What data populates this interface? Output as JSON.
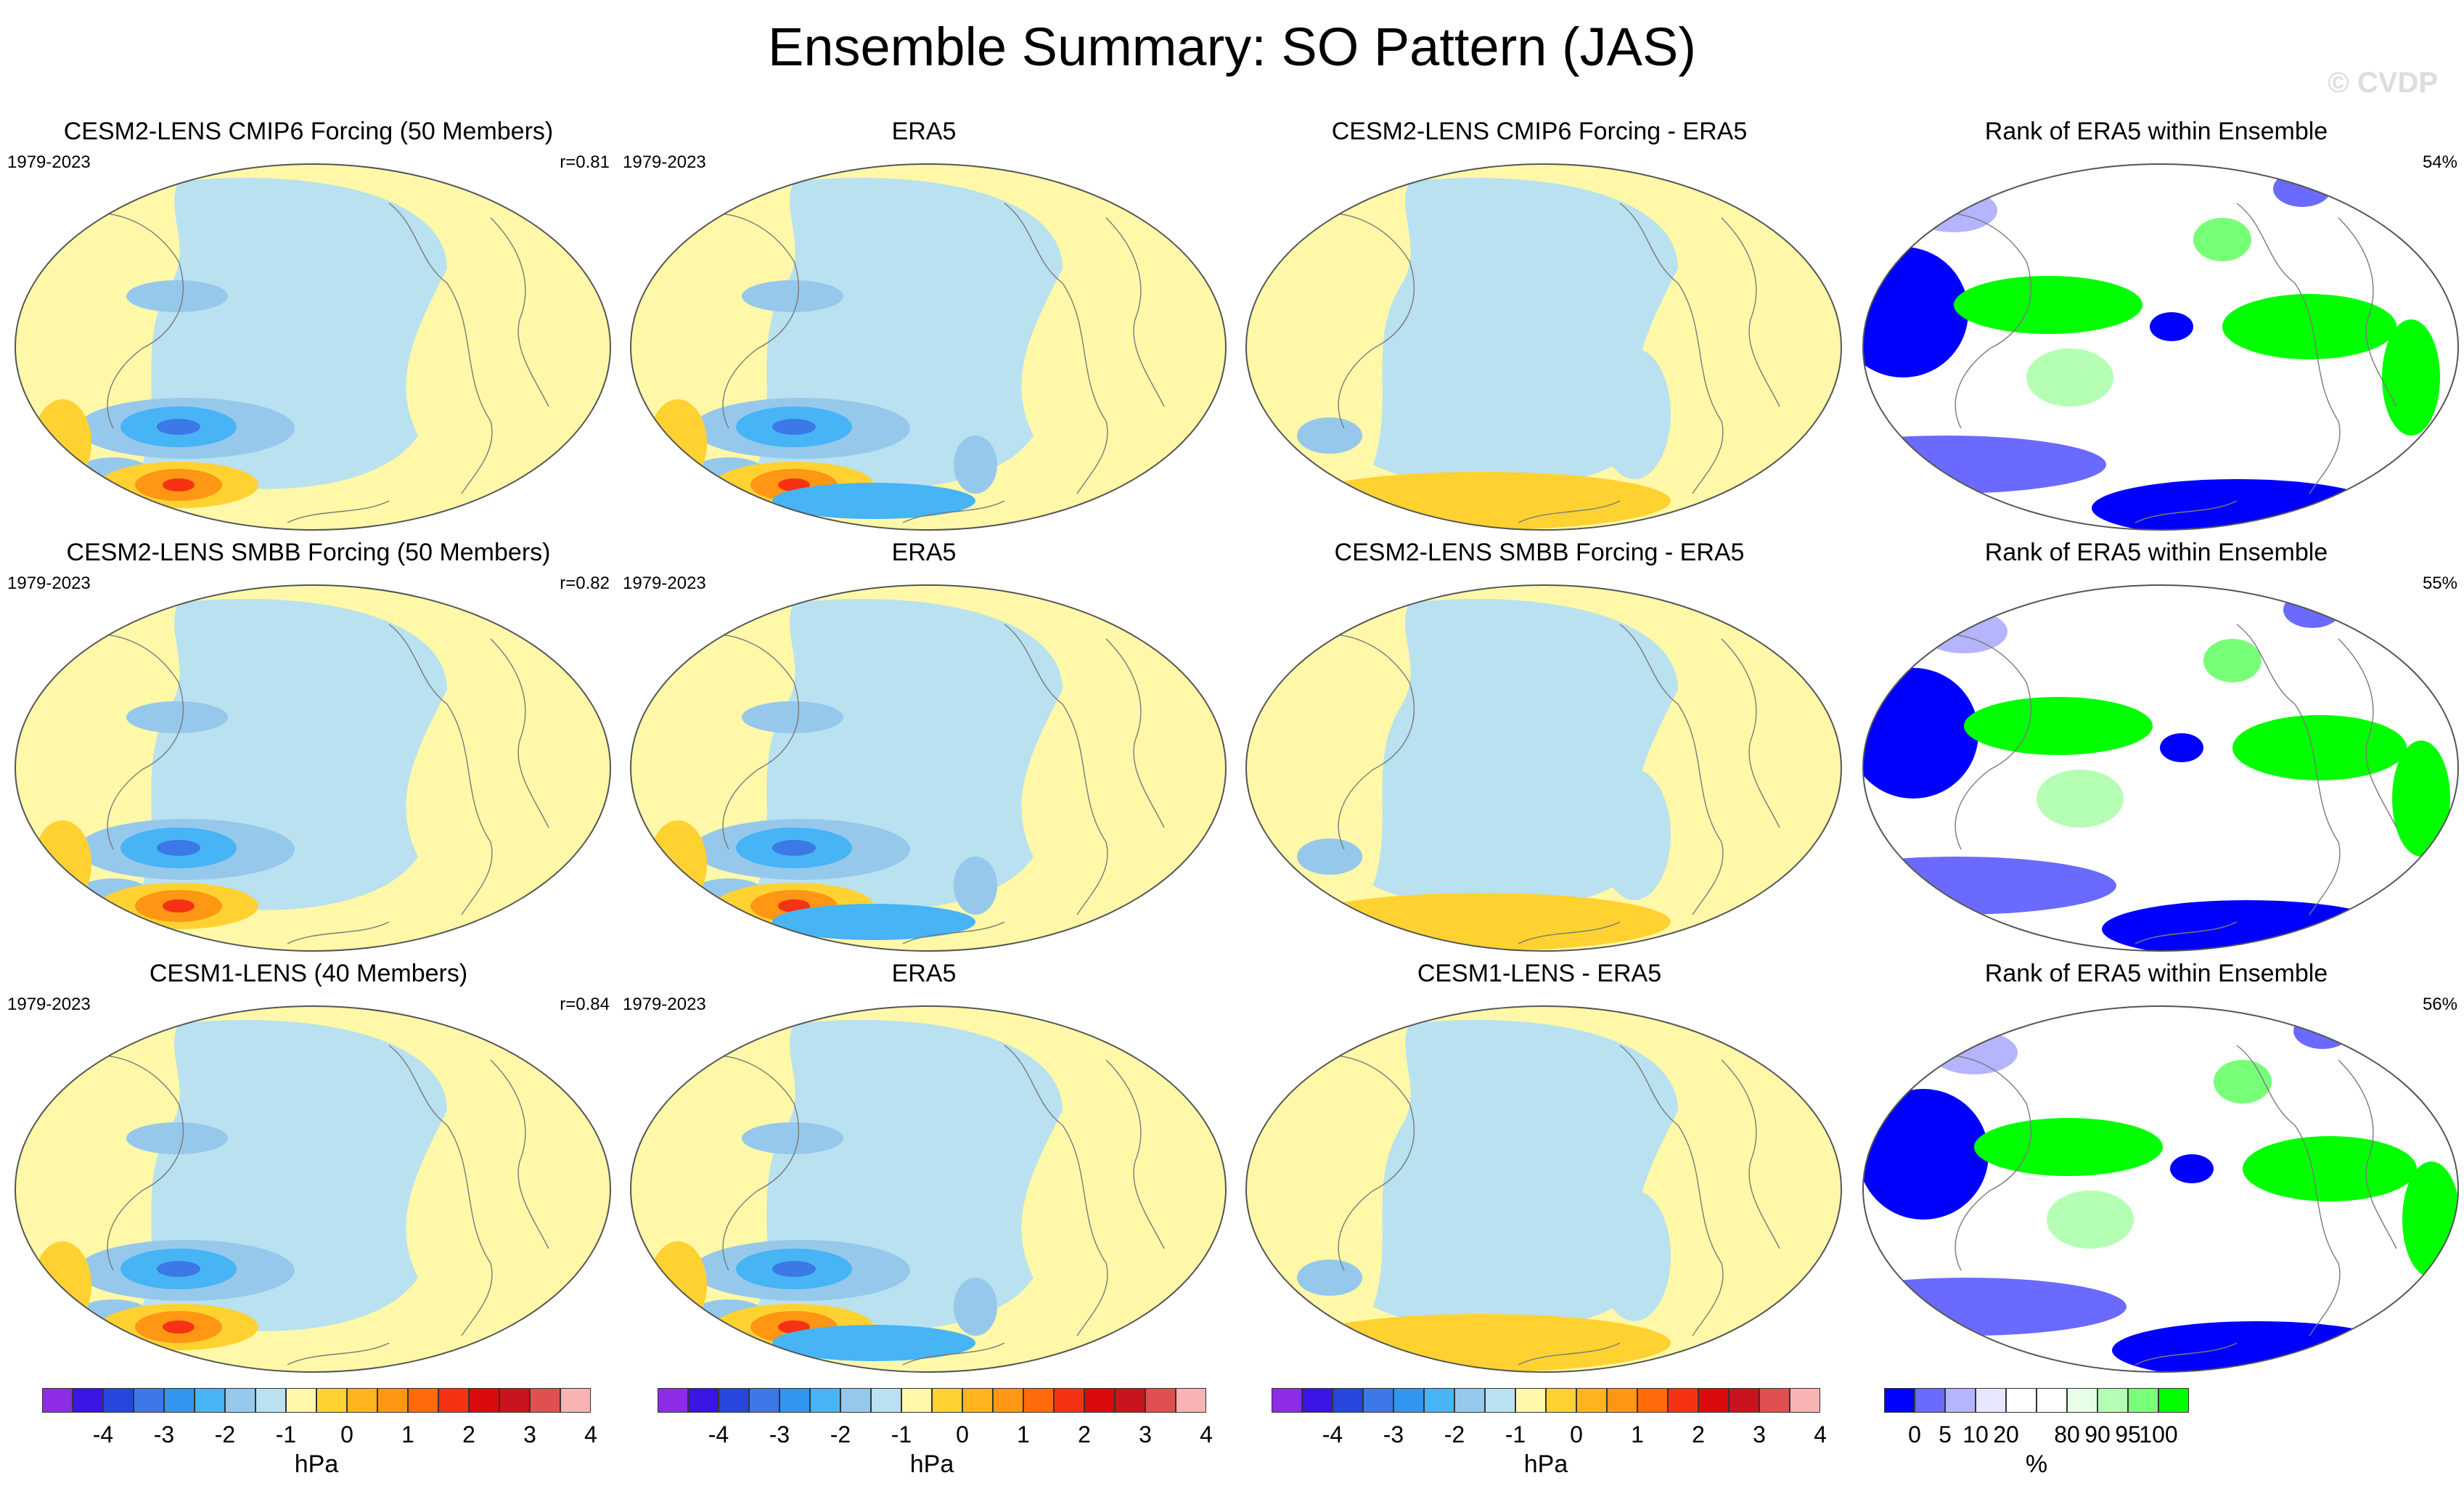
{
  "title": "Ensemble Summary: SO Pattern (JAS)",
  "watermark": "© CVDP",
  "rows": [
    {
      "panels": [
        {
          "title": "CESM2-LENS CMIP6 Forcing (50 Members)",
          "years": "1979-2023",
          "stat": "r=0.81",
          "kind": "model"
        },
        {
          "title": "ERA5",
          "years": "1979-2023",
          "stat": "",
          "kind": "obs"
        },
        {
          "title": "CESM2-LENS CMIP6 Forcing - ERA5",
          "years": "",
          "stat": "",
          "kind": "diff"
        },
        {
          "title": "Rank of ERA5 within Ensemble",
          "years": "",
          "stat": "54%",
          "kind": "rank"
        }
      ]
    },
    {
      "panels": [
        {
          "title": "CESM2-LENS SMBB Forcing (50 Members)",
          "years": "1979-2023",
          "stat": "r=0.82",
          "kind": "model"
        },
        {
          "title": "ERA5",
          "years": "1979-2023",
          "stat": "",
          "kind": "obs"
        },
        {
          "title": "CESM2-LENS SMBB Forcing - ERA5",
          "years": "",
          "stat": "",
          "kind": "diff"
        },
        {
          "title": "Rank of ERA5 within Ensemble",
          "years": "",
          "stat": "55%",
          "kind": "rank"
        }
      ]
    },
    {
      "panels": [
        {
          "title": "CESM1-LENS (40 Members)",
          "years": "1979-2023",
          "stat": "r=0.84",
          "kind": "model"
        },
        {
          "title": "ERA5",
          "years": "1979-2023",
          "stat": "",
          "kind": "obs"
        },
        {
          "title": "CESM1-LENS - ERA5",
          "years": "",
          "stat": "",
          "kind": "diff"
        },
        {
          "title": "Rank of ERA5 within Ensemble",
          "years": "",
          "stat": "56%",
          "kind": "rank"
        }
      ]
    }
  ],
  "colorbars": [
    {
      "unit": "hPa",
      "ticks": [
        "-4",
        "-3",
        "-2",
        "-1",
        "0",
        "1",
        "2",
        "3",
        "4"
      ],
      "colors": [
        "#8c2ce6",
        "#3c14e6",
        "#2846dc",
        "#3c78e6",
        "#3296f0",
        "#46b4f5",
        "#96c8ec",
        "#b9e1f0",
        "#fff8a8",
        "#ffd232",
        "#ffb41e",
        "#ff9614",
        "#ff6a0a",
        "#f53214",
        "#dc0a0a",
        "#c8141e",
        "#e05050",
        "#f8b4b4"
      ]
    },
    {
      "unit": "hPa",
      "ticks": [
        "-4",
        "-3",
        "-2",
        "-1",
        "0",
        "1",
        "2",
        "3",
        "4"
      ],
      "colors": [
        "#8c2ce6",
        "#3c14e6",
        "#2846dc",
        "#3c78e6",
        "#3296f0",
        "#46b4f5",
        "#96c8ec",
        "#b9e1f0",
        "#fff8a8",
        "#ffd232",
        "#ffb41e",
        "#ff9614",
        "#ff6a0a",
        "#f53214",
        "#dc0a0a",
        "#c8141e",
        "#e05050",
        "#f8b4b4"
      ]
    },
    {
      "unit": "hPa",
      "ticks": [
        "-4",
        "-3",
        "-2",
        "-1",
        "0",
        "1",
        "2",
        "3",
        "4"
      ],
      "colors": [
        "#8c2ce6",
        "#3c14e6",
        "#2846dc",
        "#3c78e6",
        "#3296f0",
        "#46b4f5",
        "#96c8ec",
        "#b9e1f0",
        "#fff8a8",
        "#ffd232",
        "#ffb41e",
        "#ff9614",
        "#ff6a0a",
        "#f53214",
        "#dc0a0a",
        "#c8141e",
        "#e05050",
        "#f8b4b4"
      ]
    },
    {
      "unit": "%",
      "ticks": [
        "0",
        "5",
        "10",
        "20",
        "80",
        "90",
        "95",
        "100"
      ],
      "colors": [
        "#0000ff",
        "#6a6aff",
        "#b4b4ff",
        "#e6e6ff",
        "#ffffff",
        "#ffffff",
        "#e6ffe6",
        "#b4ffb4",
        "#78ff78",
        "#00ff00"
      ]
    }
  ],
  "palette": {
    "neg1": "#b9e1f0",
    "neg2": "#96c8ec",
    "neg3": "#46b4f5",
    "neg4": "#3296f0",
    "neg5": "#3c78e6",
    "pos1": "#fff8a8",
    "pos2": "#ffd232",
    "pos3": "#ffb41e",
    "pos4": "#ff9614",
    "pos5": "#ff6a0a",
    "pos6": "#f53214",
    "rank_low": "#0000ff",
    "rank_low2": "#6a6aff",
    "rank_low3": "#b4b4ff",
    "rank_high": "#00ff00",
    "rank_high2": "#78ff78",
    "rank_high3": "#b4ffb4"
  }
}
